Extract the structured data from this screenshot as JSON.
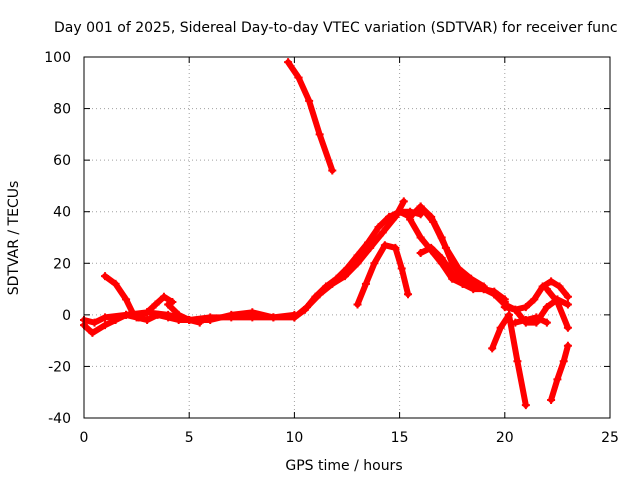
{
  "chart_data": {
    "type": "line",
    "title": "Day 001 of 2025, Sidereal Day-to-day VTEC variation (SDTVAR) for receiver func",
    "xlabel": "GPS time / hours",
    "ylabel": "SDTVAR / TECUs",
    "xlim": [
      0,
      25
    ],
    "ylim": [
      -40,
      100
    ],
    "xticks": [
      0,
      5,
      10,
      15,
      20,
      25
    ],
    "yticks": [
      -40,
      -20,
      0,
      20,
      40,
      60,
      80,
      100
    ],
    "grid": true,
    "legend": "none",
    "color": "#ff0000",
    "series": [
      {
        "name": "s1",
        "x": [
          9.7,
          10.2,
          10.7,
          11.2,
          11.8
        ],
        "y": [
          98,
          92,
          83,
          70,
          56
        ]
      },
      {
        "name": "s2",
        "x": [
          0,
          0.4,
          1.0,
          1.5,
          2.0,
          2.5,
          3.0,
          3.5,
          4.0,
          4.5,
          5.0,
          6.0,
          7.0,
          8.0,
          9.0,
          10.0
        ],
        "y": [
          -4,
          -7,
          -4,
          -2,
          0,
          -1,
          -2,
          0,
          -1,
          -2,
          -2,
          -1,
          -1,
          -1,
          -1,
          -1
        ]
      },
      {
        "name": "s3",
        "x": [
          0,
          0.5,
          1.0,
          2.0,
          3.0,
          4.0,
          5.0,
          6.0,
          7.0,
          8.0,
          9.0,
          10.0
        ],
        "y": [
          -2,
          -3,
          -1,
          0,
          1,
          0,
          -2,
          -2,
          0,
          1,
          -1,
          0
        ]
      },
      {
        "name": "s4",
        "x": [
          1.0,
          1.5,
          2.0,
          2.3,
          2.6
        ],
        "y": [
          15,
          12,
          6,
          1,
          -1
        ]
      },
      {
        "name": "s5",
        "x": [
          2.6,
          3.0,
          3.4,
          3.8,
          4.2
        ],
        "y": [
          -1,
          1,
          4,
          7,
          5
        ]
      },
      {
        "name": "s6",
        "x": [
          4.0,
          4.5,
          5.0,
          5.5
        ],
        "y": [
          4,
          0,
          -2,
          -3
        ]
      },
      {
        "name": "s7",
        "x": [
          10.0,
          10.5,
          11.0,
          11.5,
          12.0,
          12.5,
          13.0,
          13.5,
          14.0,
          14.5,
          15.0,
          15.5,
          16.0
        ],
        "y": [
          -1,
          2,
          7,
          11,
          14,
          18,
          23,
          28,
          34,
          38,
          40,
          40,
          39
        ]
      },
      {
        "name": "s8",
        "x": [
          10.0,
          10.6,
          11.2,
          11.8,
          12.4,
          13.0,
          13.6,
          14.2,
          14.8,
          15.2
        ],
        "y": [
          -1,
          3,
          8,
          12,
          15,
          20,
          26,
          32,
          38,
          44
        ]
      },
      {
        "name": "s9",
        "x": [
          13.0,
          13.4,
          13.8,
          14.3,
          14.8,
          15.1,
          15.4
        ],
        "y": [
          4,
          12,
          20,
          27,
          26,
          18,
          8
        ]
      },
      {
        "name": "s10",
        "x": [
          15.0,
          15.5,
          16.0,
          16.5,
          17.0,
          17.5,
          18.0,
          18.5
        ],
        "y": [
          40,
          38,
          42,
          38,
          30,
          20,
          14,
          12
        ]
      },
      {
        "name": "s11",
        "x": [
          15.5,
          16.0,
          16.5,
          17.0,
          17.5,
          18.0,
          18.5,
          19.0,
          19.5,
          20.0
        ],
        "y": [
          37,
          30,
          25,
          20,
          14,
          12,
          11,
          10,
          8,
          5
        ]
      },
      {
        "name": "s12",
        "x": [
          16.0,
          16.5,
          17.0,
          17.5,
          18.0,
          18.5,
          19.0,
          19.5,
          20.0
        ],
        "y": [
          24,
          26,
          22,
          16,
          12,
          10,
          10,
          9,
          6
        ]
      },
      {
        "name": "s13",
        "x": [
          16.0,
          16.6,
          17.2,
          17.8,
          18.4,
          19.0
        ],
        "y": [
          42,
          36,
          26,
          18,
          14,
          11
        ]
      },
      {
        "name": "s14",
        "x": [
          19.4,
          19.8,
          20.2,
          20.6,
          21.0
        ],
        "y": [
          -13,
          -5,
          0,
          -18,
          -35
        ]
      },
      {
        "name": "s15",
        "x": [
          19.5,
          20.0,
          20.5,
          21.0,
          21.5,
          22.0,
          22.5,
          23.0
        ],
        "y": [
          8,
          4,
          2,
          -3,
          -3,
          3,
          6,
          4
        ]
      },
      {
        "name": "s16",
        "x": [
          20.0,
          20.5,
          21.0,
          21.4,
          21.8,
          22.2,
          22.6,
          23.0
        ],
        "y": [
          3,
          2,
          3,
          6,
          11,
          13,
          11,
          7
        ]
      },
      {
        "name": "s17",
        "x": [
          20.5,
          21.0,
          21.5,
          22.0
        ],
        "y": [
          -3,
          -2,
          -1,
          -3
        ]
      },
      {
        "name": "s18",
        "x": [
          22.2,
          22.5,
          22.8,
          23.0
        ],
        "y": [
          -33,
          -25,
          -18,
          -12
        ]
      },
      {
        "name": "s19",
        "x": [
          22.0,
          22.5,
          23.0
        ],
        "y": [
          10,
          5,
          -5
        ]
      }
    ]
  }
}
